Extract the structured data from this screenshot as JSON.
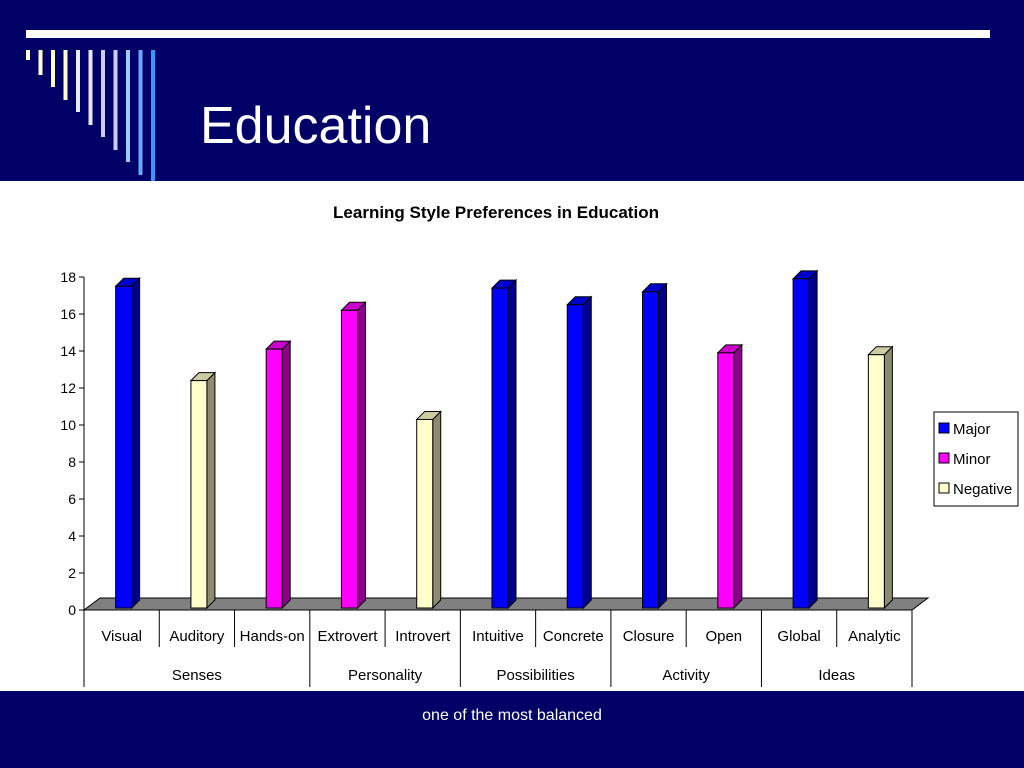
{
  "slide": {
    "title": "Education",
    "footer": "one of the most balanced"
  },
  "colors": {
    "background_band": "#000066",
    "Major": "#0000ff",
    "Minor": "#ff00ff",
    "Negative": "#ffffcc"
  },
  "chart_data": {
    "type": "bar",
    "title": "Learning Style Preferences in Education",
    "xlabel": "",
    "ylabel": "",
    "ylim": [
      0,
      18
    ],
    "yticks": [
      0,
      2,
      4,
      6,
      8,
      10,
      12,
      14,
      16,
      18
    ],
    "legend_position": "right",
    "style": "3d",
    "categories": [
      "Visual",
      "Auditory",
      "Hands-on",
      "Extrovert",
      "Introvert",
      "Intuitive",
      "Concrete",
      "Closure",
      "Open",
      "Global",
      "Analytic"
    ],
    "groups": [
      {
        "label": "Senses",
        "span": 3
      },
      {
        "label": "Personality",
        "span": 2
      },
      {
        "label": "Possibilities",
        "span": 2
      },
      {
        "label": "Activity",
        "span": 2
      },
      {
        "label": "Ideas",
        "span": 2
      }
    ],
    "series": [
      {
        "name": "Major",
        "values": [
          17.5,
          null,
          null,
          null,
          null,
          17.4,
          16.5,
          17.2,
          null,
          17.9,
          null
        ]
      },
      {
        "name": "Minor",
        "values": [
          null,
          null,
          14.1,
          16.2,
          null,
          null,
          null,
          null,
          13.9,
          null,
          null
        ]
      },
      {
        "name": "Negative",
        "values": [
          null,
          12.4,
          null,
          null,
          10.3,
          null,
          null,
          null,
          null,
          null,
          13.8
        ]
      }
    ]
  }
}
